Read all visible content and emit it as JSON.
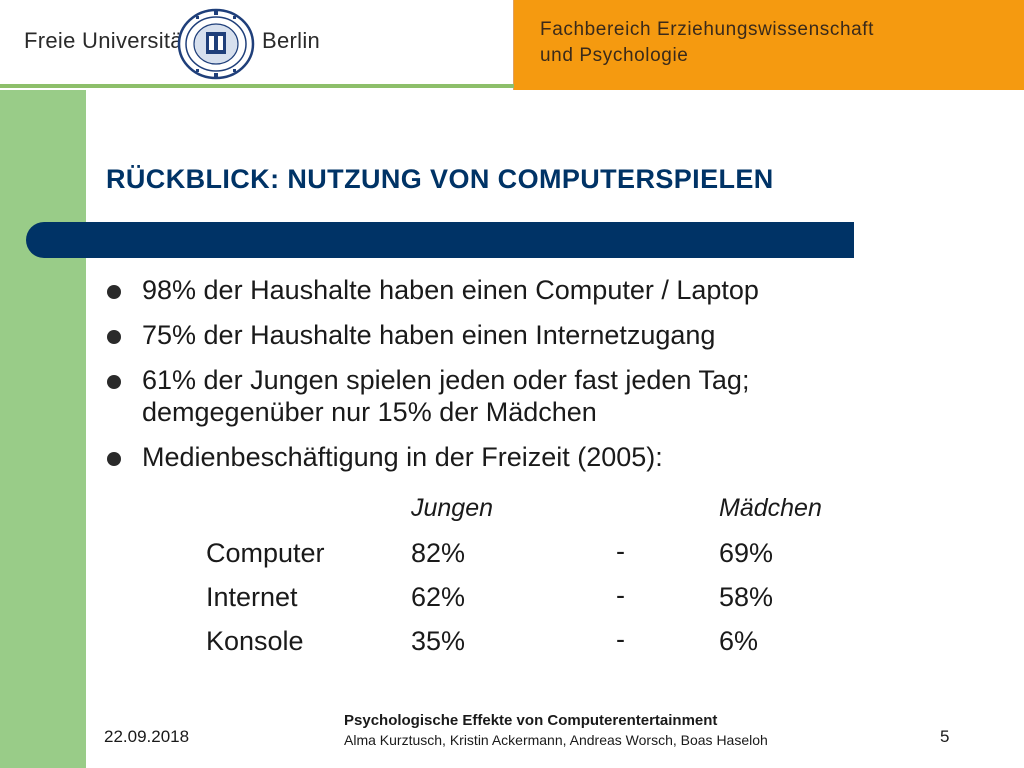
{
  "header": {
    "university_left": "Freie Universität",
    "university_right": "Berlin",
    "department_line1": "Fachbereich Erziehungswissenschaft",
    "department_line2": "und Psychologie",
    "colors": {
      "orange": "#f59a10",
      "green": "#99cc88",
      "navy": "#003366"
    }
  },
  "slide": {
    "title": "RÜCKBLICK: NUTZUNG VON COMPUTERSPIELEN",
    "bullets": [
      {
        "line1": "98% der Haushalte haben einen Computer / Laptop",
        "line2": ""
      },
      {
        "line1": "75% der Haushalte haben einen Internetzugang",
        "line2": ""
      },
      {
        "line1": "61% der Jungen spielen jeden oder fast jeden Tag;",
        "line2": "demgegenüber nur 15% der Mädchen"
      },
      {
        "line1": "Medienbeschäftigung in der Freizeit (2005):",
        "line2": ""
      }
    ],
    "table": {
      "col_boys": "Jungen",
      "col_girls": "Mädchen",
      "rows": [
        {
          "label": "Computer",
          "boys": "82%",
          "sep": "-",
          "girls": "69%"
        },
        {
          "label": "Internet",
          "boys": "62%",
          "sep": "-",
          "girls": "58%"
        },
        {
          "label": "Konsole",
          "boys": "35%",
          "sep": "-",
          "girls": "6%"
        }
      ]
    }
  },
  "footer": {
    "date": "22.09.2018",
    "title": "Psychologische Effekte von Computerentertainment",
    "authors": "Alma Kurztusch, Kristin Ackermann, Andreas Worsch, Boas Haseloh",
    "page_number": "5"
  }
}
